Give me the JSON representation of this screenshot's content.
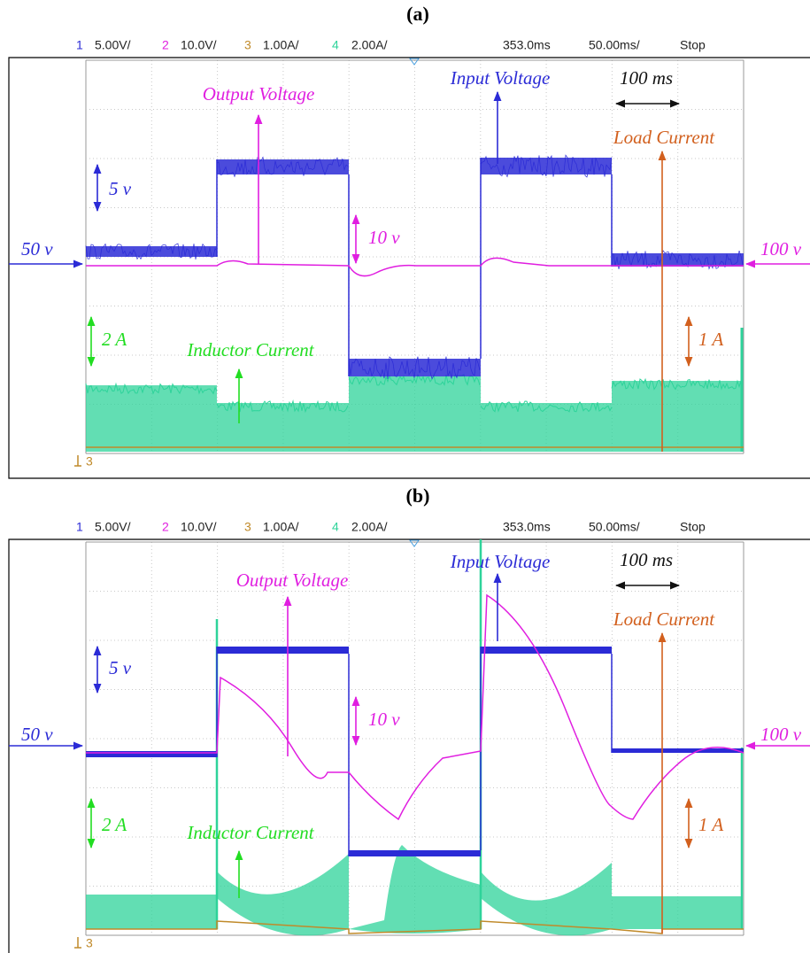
{
  "panels": [
    {
      "label": "(a)",
      "header": [
        "1",
        "5.00V/",
        "2",
        "10.0V/",
        "3",
        "1.00A/",
        "4",
        "2.00A/",
        "353.0ms",
        "50.00ms/",
        "Stop"
      ],
      "annotations": {
        "output_voltage": "Output Voltage",
        "input_voltage": "Input Voltage",
        "time_scale": "100 ms",
        "load_current": "Load Current",
        "input_scale": "5 v",
        "output_scale": "10 v",
        "input_level": "50 v",
        "output_level": "100 v",
        "inductor_scale": "2 A",
        "inductor_current": "Inductor Current",
        "load_scale": "1 A",
        "channel_marker": "3"
      }
    },
    {
      "label": "(b)",
      "header": [
        "1",
        "5.00V/",
        "2",
        "10.0V/",
        "3",
        "1.00A/",
        "4",
        "2.00A/",
        "353.0ms",
        "50.00ms/",
        "Stop"
      ],
      "annotations": {
        "output_voltage": "Output Voltage",
        "input_voltage": "Input Voltage",
        "time_scale": "100 ms",
        "load_current": "Load Current",
        "input_scale": "5 v",
        "output_scale": "10 v",
        "input_level": "50 v",
        "output_level": "100 v",
        "inductor_scale": "2 A",
        "inductor_current": "Inductor Current",
        "load_scale": "1 A",
        "channel_marker": "3"
      }
    }
  ]
}
